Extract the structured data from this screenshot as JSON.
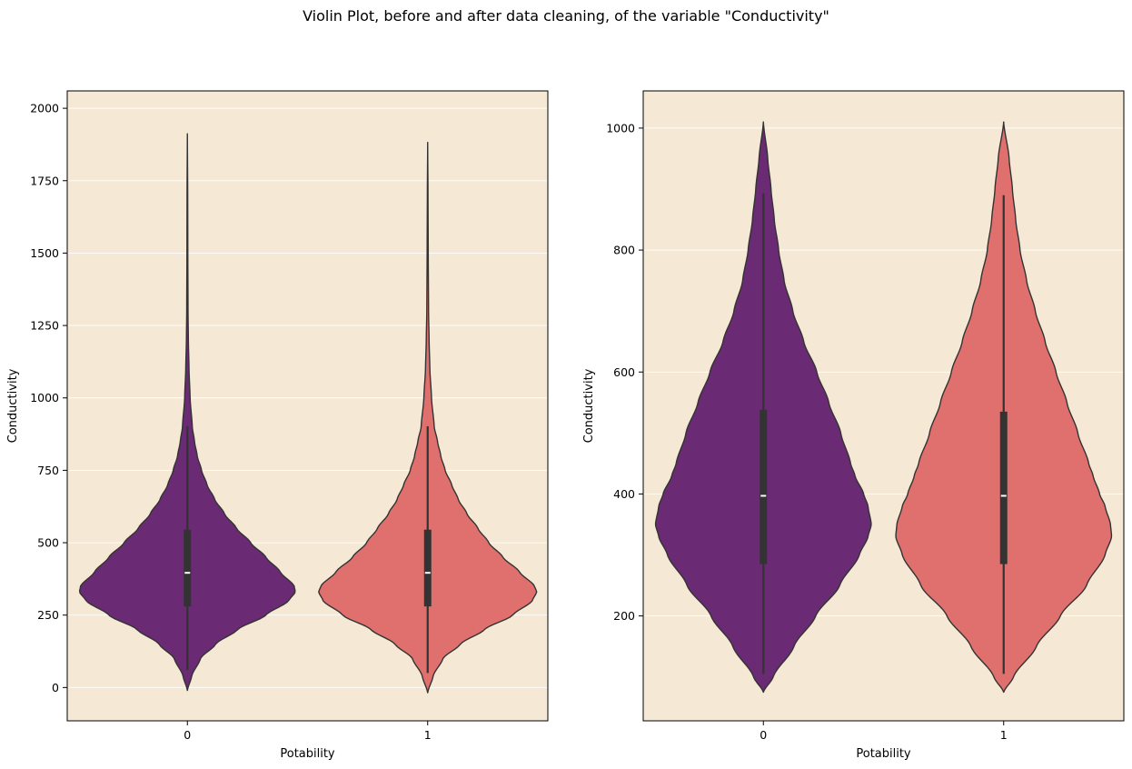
{
  "figure": {
    "suptitle": "Violin Plot, before and after data cleaning, of the variable \"Conductivity\""
  },
  "chart_data": [
    {
      "type": "violin",
      "title": "",
      "xlabel": "Potability",
      "ylabel": "Conductivity",
      "categories": [
        "0",
        "1"
      ],
      "ylim": [
        -115,
        2060
      ],
      "yticks": [
        0,
        250,
        500,
        750,
        1000,
        1250,
        1500,
        1750,
        2000
      ],
      "grid": "y",
      "background": "#f5e8d4",
      "colors": [
        "#6a2a74",
        "#df706e"
      ],
      "violins": [
        {
          "category": "0",
          "color": "#6a2a74",
          "range": [
            -10,
            1912
          ],
          "q1": 280,
          "median": 396,
          "q3": 545,
          "whisker_low": 60,
          "whisker_high": 902,
          "profile_y": [
            -10,
            40,
            100,
            150,
            200,
            250,
            300,
            330,
            350,
            400,
            450,
            500,
            550,
            600,
            650,
            700,
            750,
            800,
            850,
            900,
            1000,
            1100,
            1200,
            1300,
            1500,
            1700,
            1912
          ],
          "profile_w": [
            0.0,
            0.04,
            0.12,
            0.26,
            0.46,
            0.72,
            0.93,
            0.99,
            0.98,
            0.85,
            0.72,
            0.58,
            0.45,
            0.34,
            0.25,
            0.18,
            0.13,
            0.09,
            0.065,
            0.045,
            0.025,
            0.015,
            0.009,
            0.006,
            0.004,
            0.003,
            0.0
          ]
        },
        {
          "category": "1",
          "color": "#df706e",
          "range": [
            -18,
            1882
          ],
          "q1": 280,
          "median": 396,
          "q3": 545,
          "whisker_low": 50,
          "whisker_high": 902,
          "profile_y": [
            -18,
            40,
            100,
            150,
            200,
            250,
            300,
            330,
            350,
            400,
            450,
            500,
            550,
            600,
            650,
            700,
            750,
            800,
            850,
            900,
            1000,
            1100,
            1200,
            1300,
            1500,
            1700,
            1882
          ],
          "profile_w": [
            0.0,
            0.05,
            0.14,
            0.3,
            0.52,
            0.78,
            0.96,
            1.0,
            0.98,
            0.84,
            0.69,
            0.56,
            0.46,
            0.36,
            0.28,
            0.22,
            0.16,
            0.12,
            0.09,
            0.06,
            0.035,
            0.02,
            0.013,
            0.008,
            0.005,
            0.003,
            0.0
          ]
        }
      ]
    },
    {
      "type": "violin",
      "title": "",
      "xlabel": "Potability",
      "ylabel": "Conductivity",
      "categories": [
        "0",
        "1"
      ],
      "ylim": [
        28,
        1061
      ],
      "yticks": [
        200,
        400,
        600,
        800,
        1000
      ],
      "grid": "y",
      "background": "#f5e8d4",
      "colors": [
        "#6a2a74",
        "#df706e"
      ],
      "violins": [
        {
          "category": "0",
          "color": "#6a2a74",
          "range": [
            75,
            1010
          ],
          "q1": 285,
          "median": 397,
          "q3": 538,
          "whisker_low": 105,
          "whisker_high": 893,
          "profile_y": [
            75,
            100,
            150,
            200,
            250,
            300,
            330,
            350,
            380,
            400,
            430,
            450,
            500,
            550,
            600,
            650,
            700,
            750,
            800,
            850,
            900,
            950,
            1010
          ],
          "profile_w": [
            0.0,
            0.09,
            0.28,
            0.48,
            0.7,
            0.88,
            0.96,
            0.99,
            0.96,
            0.92,
            0.84,
            0.8,
            0.71,
            0.6,
            0.49,
            0.37,
            0.27,
            0.19,
            0.14,
            0.1,
            0.07,
            0.04,
            0.0
          ]
        },
        {
          "category": "1",
          "color": "#df706e",
          "range": [
            75,
            1010
          ],
          "q1": 285,
          "median": 397,
          "q3": 535,
          "whisker_low": 105,
          "whisker_high": 890,
          "profile_y": [
            75,
            100,
            150,
            200,
            250,
            300,
            330,
            350,
            380,
            400,
            430,
            450,
            500,
            550,
            600,
            650,
            700,
            750,
            800,
            850,
            900,
            950,
            1010
          ],
          "profile_w": [
            0.0,
            0.09,
            0.3,
            0.52,
            0.76,
            0.93,
            0.99,
            0.98,
            0.93,
            0.88,
            0.82,
            0.78,
            0.68,
            0.58,
            0.48,
            0.38,
            0.29,
            0.21,
            0.15,
            0.11,
            0.08,
            0.05,
            0.0
          ]
        }
      ]
    }
  ]
}
